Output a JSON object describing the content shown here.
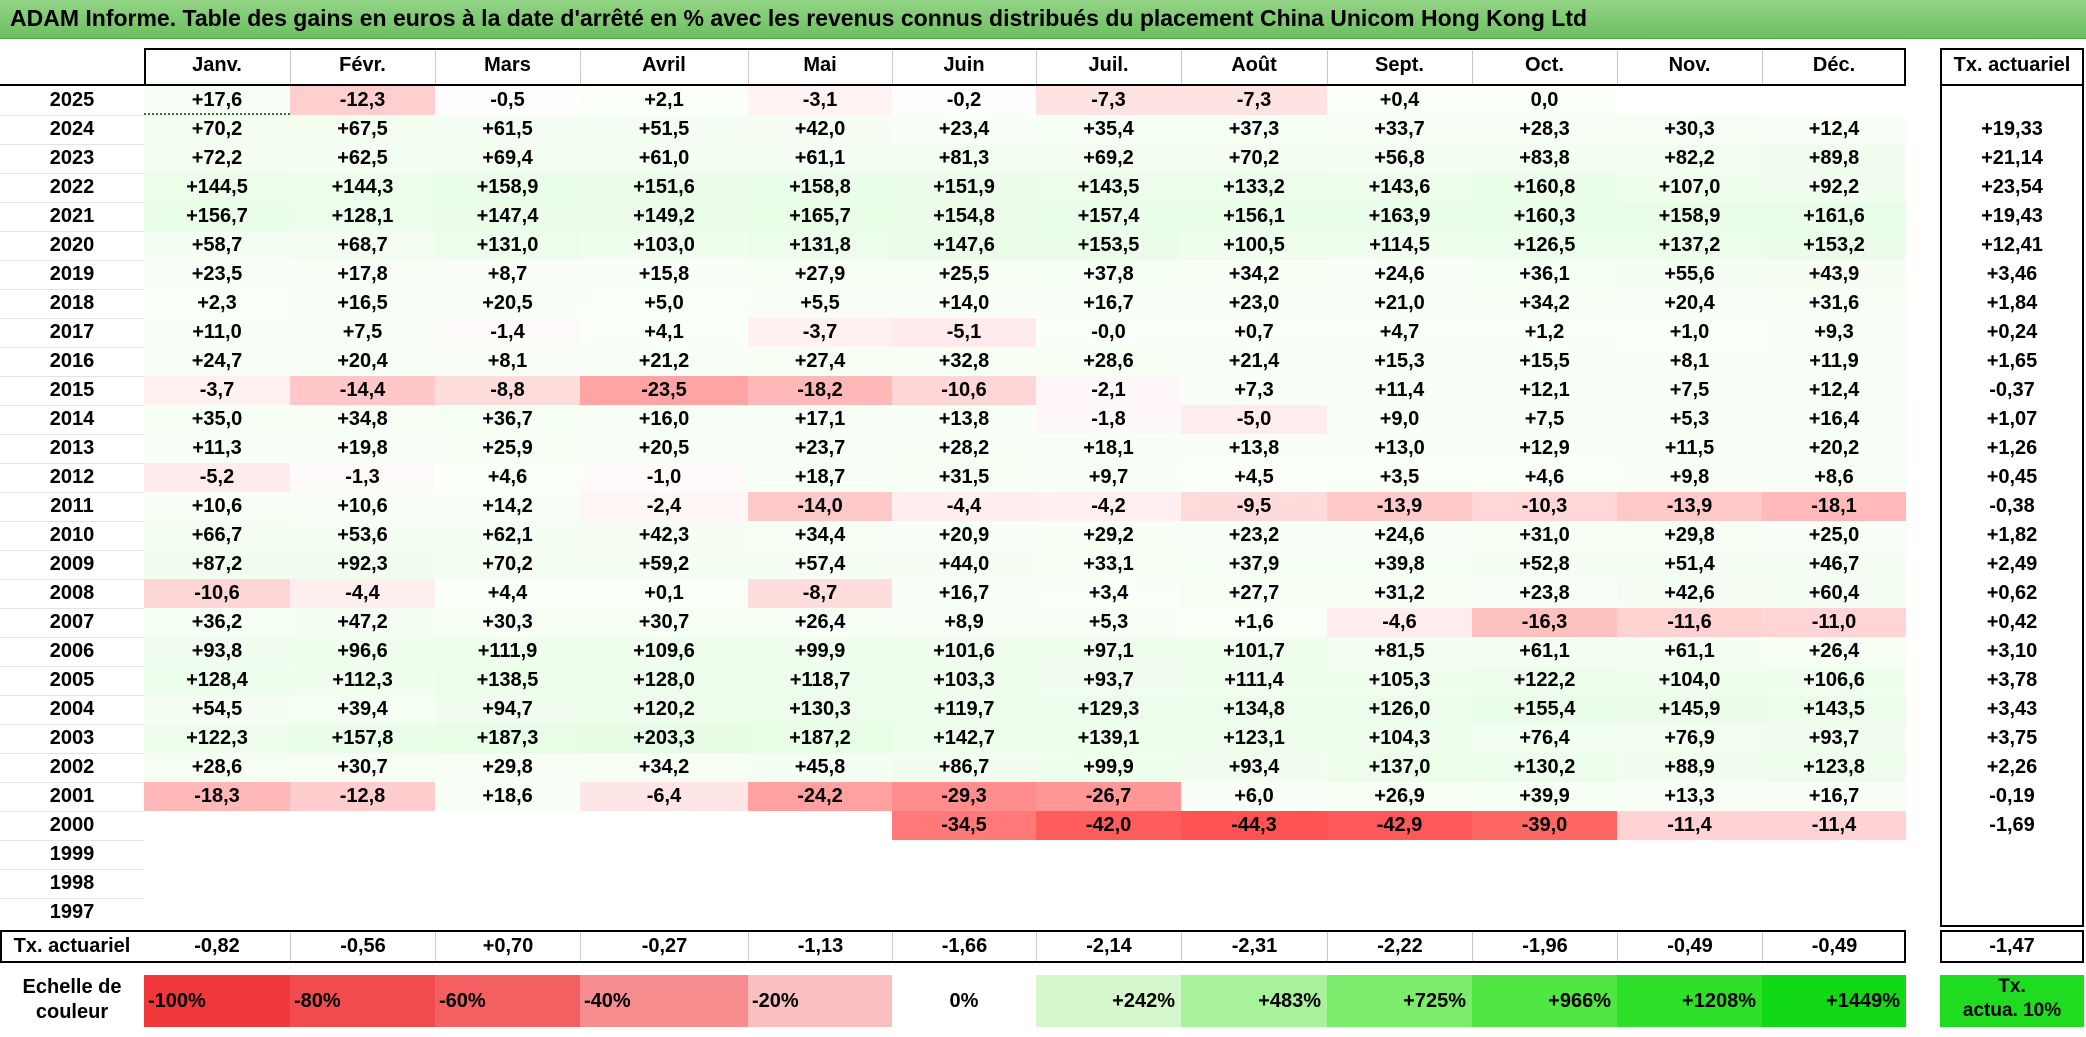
{
  "title": "ADAM Informe. Table des gains en euros à la date d'arrêté en % avec les revenus connus distribués du placement China Unicom Hong Kong Ltd",
  "chart_data": {
    "type": "heatmap",
    "months": [
      "Janv.",
      "Févr.",
      "Mars",
      "Avril",
      "Mai",
      "Juin",
      "Juil.",
      "Août",
      "Sept.",
      "Oct.",
      "Nov.",
      "Déc."
    ],
    "rate_header": "Tx. actuariel",
    "rows": [
      {
        "year": "2025",
        "values": [
          "+17,6",
          "-12,3",
          "-0,5",
          "+2,1",
          "-3,1",
          "-0,2",
          "-7,3",
          "-7,3",
          "+0,4",
          "0,0",
          "",
          ""
        ],
        "rate": ""
      },
      {
        "year": "2024",
        "values": [
          "+70,2",
          "+67,5",
          "+61,5",
          "+51,5",
          "+42,0",
          "+23,4",
          "+35,4",
          "+37,3",
          "+33,7",
          "+28,3",
          "+30,3",
          "+12,4"
        ],
        "rate": "+19,33"
      },
      {
        "year": "2023",
        "values": [
          "+72,2",
          "+62,5",
          "+69,4",
          "+61,0",
          "+61,1",
          "+81,3",
          "+69,2",
          "+70,2",
          "+56,8",
          "+83,8",
          "+82,2",
          "+89,8"
        ],
        "rate": "+21,14"
      },
      {
        "year": "2022",
        "values": [
          "+144,5",
          "+144,3",
          "+158,9",
          "+151,6",
          "+158,8",
          "+151,9",
          "+143,5",
          "+133,2",
          "+143,6",
          "+160,8",
          "+107,0",
          "+92,2"
        ],
        "rate": "+23,54"
      },
      {
        "year": "2021",
        "values": [
          "+156,7",
          "+128,1",
          "+147,4",
          "+149,2",
          "+165,7",
          "+154,8",
          "+157,4",
          "+156,1",
          "+163,9",
          "+160,3",
          "+158,9",
          "+161,6"
        ],
        "rate": "+19,43"
      },
      {
        "year": "2020",
        "values": [
          "+58,7",
          "+68,7",
          "+131,0",
          "+103,0",
          "+131,8",
          "+147,6",
          "+153,5",
          "+100,5",
          "+114,5",
          "+126,5",
          "+137,2",
          "+153,2"
        ],
        "rate": "+12,41"
      },
      {
        "year": "2019",
        "values": [
          "+23,5",
          "+17,8",
          "+8,7",
          "+15,8",
          "+27,9",
          "+25,5",
          "+37,8",
          "+34,2",
          "+24,6",
          "+36,1",
          "+55,6",
          "+43,9"
        ],
        "rate": "+3,46"
      },
      {
        "year": "2018",
        "values": [
          "+2,3",
          "+16,5",
          "+20,5",
          "+5,0",
          "+5,5",
          "+14,0",
          "+16,7",
          "+23,0",
          "+21,0",
          "+34,2",
          "+20,4",
          "+31,6"
        ],
        "rate": "+1,84"
      },
      {
        "year": "2017",
        "values": [
          "+11,0",
          "+7,5",
          "-1,4",
          "+4,1",
          "-3,7",
          "-5,1",
          "-0,0",
          "+0,7",
          "+4,7",
          "+1,2",
          "+1,0",
          "+9,3"
        ],
        "rate": "+0,24"
      },
      {
        "year": "2016",
        "values": [
          "+24,7",
          "+20,4",
          "+8,1",
          "+21,2",
          "+27,4",
          "+32,8",
          "+28,6",
          "+21,4",
          "+15,3",
          "+15,5",
          "+8,1",
          "+11,9"
        ],
        "rate": "+1,65"
      },
      {
        "year": "2015",
        "values": [
          "-3,7",
          "-14,4",
          "-8,8",
          "-23,5",
          "-18,2",
          "-10,6",
          "-2,1",
          "+7,3",
          "+11,4",
          "+12,1",
          "+7,5",
          "+12,4"
        ],
        "rate": "-0,37"
      },
      {
        "year": "2014",
        "values": [
          "+35,0",
          "+34,8",
          "+36,7",
          "+16,0",
          "+17,1",
          "+13,8",
          "-1,8",
          "-5,0",
          "+9,0",
          "+7,5",
          "+5,3",
          "+16,4"
        ],
        "rate": "+1,07"
      },
      {
        "year": "2013",
        "values": [
          "+11,3",
          "+19,8",
          "+25,9",
          "+20,5",
          "+23,7",
          "+28,2",
          "+18,1",
          "+13,8",
          "+13,0",
          "+12,9",
          "+11,5",
          "+20,2"
        ],
        "rate": "+1,26"
      },
      {
        "year": "2012",
        "values": [
          "-5,2",
          "-1,3",
          "+4,6",
          "-1,0",
          "+18,7",
          "+31,5",
          "+9,7",
          "+4,5",
          "+3,5",
          "+4,6",
          "+9,8",
          "+8,6"
        ],
        "rate": "+0,45"
      },
      {
        "year": "2011",
        "values": [
          "+10,6",
          "+10,6",
          "+14,2",
          "-2,4",
          "-14,0",
          "-4,4",
          "-4,2",
          "-9,5",
          "-13,9",
          "-10,3",
          "-13,9",
          "-18,1"
        ],
        "rate": "-0,38"
      },
      {
        "year": "2010",
        "values": [
          "+66,7",
          "+53,6",
          "+62,1",
          "+42,3",
          "+34,4",
          "+20,9",
          "+29,2",
          "+23,2",
          "+24,6",
          "+31,0",
          "+29,8",
          "+25,0"
        ],
        "rate": "+1,82"
      },
      {
        "year": "2009",
        "values": [
          "+87,2",
          "+92,3",
          "+70,2",
          "+59,2",
          "+57,4",
          "+44,0",
          "+33,1",
          "+37,9",
          "+39,8",
          "+52,8",
          "+51,4",
          "+46,7"
        ],
        "rate": "+2,49"
      },
      {
        "year": "2008",
        "values": [
          "-10,6",
          "-4,4",
          "+4,4",
          "+0,1",
          "-8,7",
          "+16,7",
          "+3,4",
          "+27,7",
          "+31,2",
          "+23,8",
          "+42,6",
          "+60,4"
        ],
        "rate": "+0,62"
      },
      {
        "year": "2007",
        "values": [
          "+36,2",
          "+47,2",
          "+30,3",
          "+30,7",
          "+26,4",
          "+8,9",
          "+5,3",
          "+1,6",
          "-4,6",
          "-16,3",
          "-11,6",
          "-11,0"
        ],
        "rate": "+0,42"
      },
      {
        "year": "2006",
        "values": [
          "+93,8",
          "+96,6",
          "+111,9",
          "+109,6",
          "+99,9",
          "+101,6",
          "+97,1",
          "+101,7",
          "+81,5",
          "+61,1",
          "+61,1",
          "+26,4"
        ],
        "rate": "+3,10"
      },
      {
        "year": "2005",
        "values": [
          "+128,4",
          "+112,3",
          "+138,5",
          "+128,0",
          "+118,7",
          "+103,3",
          "+93,7",
          "+111,4",
          "+105,3",
          "+122,2",
          "+104,0",
          "+106,6"
        ],
        "rate": "+3,78"
      },
      {
        "year": "2004",
        "values": [
          "+54,5",
          "+39,4",
          "+94,7",
          "+120,2",
          "+130,3",
          "+119,7",
          "+129,3",
          "+134,8",
          "+126,0",
          "+155,4",
          "+145,9",
          "+143,5"
        ],
        "rate": "+3,43"
      },
      {
        "year": "2003",
        "values": [
          "+122,3",
          "+157,8",
          "+187,3",
          "+203,3",
          "+187,2",
          "+142,7",
          "+139,1",
          "+123,1",
          "+104,3",
          "+76,4",
          "+76,9",
          "+93,7"
        ],
        "rate": "+3,75"
      },
      {
        "year": "2002",
        "values": [
          "+28,6",
          "+30,7",
          "+29,8",
          "+34,2",
          "+45,8",
          "+86,7",
          "+99,9",
          "+93,4",
          "+137,0",
          "+130,2",
          "+88,9",
          "+123,8"
        ],
        "rate": "+2,26"
      },
      {
        "year": "2001",
        "values": [
          "-18,3",
          "-12,8",
          "+18,6",
          "-6,4",
          "-24,2",
          "-29,3",
          "-26,7",
          "+6,0",
          "+26,9",
          "+39,9",
          "+13,3",
          "+16,7"
        ],
        "rate": "-0,19"
      },
      {
        "year": "2000",
        "values": [
          "",
          "",
          "",
          "",
          "",
          "-34,5",
          "-42,0",
          "-44,3",
          "-42,9",
          "-39,0",
          "-11,4",
          "-11,4"
        ],
        "rate": "-1,69"
      },
      {
        "year": "1999",
        "values": [
          "",
          "",
          "",
          "",
          "",
          "",
          "",
          "",
          "",
          "",
          "",
          ""
        ],
        "rate": ""
      },
      {
        "year": "1998",
        "values": [
          "",
          "",
          "",
          "",
          "",
          "",
          "",
          "",
          "",
          "",
          "",
          ""
        ],
        "rate": ""
      },
      {
        "year": "1997",
        "values": [
          "",
          "",
          "",
          "",
          "",
          "",
          "",
          "",
          "",
          "",
          "",
          ""
        ],
        "rate": ""
      }
    ],
    "footer": {
      "label": "Tx. actuariel",
      "values": [
        "-0,82",
        "-0,56",
        "+0,70",
        "-0,27",
        "-1,13",
        "-1,66",
        "-2,14",
        "-2,31",
        "-2,22",
        "-1,96",
        "-0,49",
        "-0,49"
      ],
      "rate": "-1,47"
    },
    "scale": {
      "label_line1": "Echelle de",
      "label_line2": "couleur",
      "steps": [
        {
          "text": "-100%",
          "color": "#f0383b",
          "align": "left"
        },
        {
          "text": "-80%",
          "color": "#f24b4d",
          "align": "left"
        },
        {
          "text": "-60%",
          "color": "#f45f61",
          "align": "left"
        },
        {
          "text": "-40%",
          "color": "#f78d8e",
          "align": "left"
        },
        {
          "text": "-20%",
          "color": "#fbbfbf",
          "align": "left"
        },
        {
          "text": "0%",
          "color": "#ffffff",
          "align": "center"
        },
        {
          "text": "+242%",
          "color": "#d4f8cc",
          "align": "right"
        },
        {
          "text": "+483%",
          "color": "#a9f29c",
          "align": "right"
        },
        {
          "text": "+725%",
          "color": "#7cec6c",
          "align": "right"
        },
        {
          "text": "+966%",
          "color": "#52e645",
          "align": "right"
        },
        {
          "text": "+1208%",
          "color": "#2ee02a",
          "align": "right"
        },
        {
          "text": "+1449%",
          "color": "#12d917",
          "align": "right"
        }
      ],
      "rate_line1": "Tx.",
      "rate_line2": "actua. 10%",
      "rate_color": "#1fdc20"
    },
    "colors": {
      "title_bg": "#7cc96f",
      "negative_max": "#ff5050",
      "positive_tint": "#e9fbe6"
    }
  }
}
